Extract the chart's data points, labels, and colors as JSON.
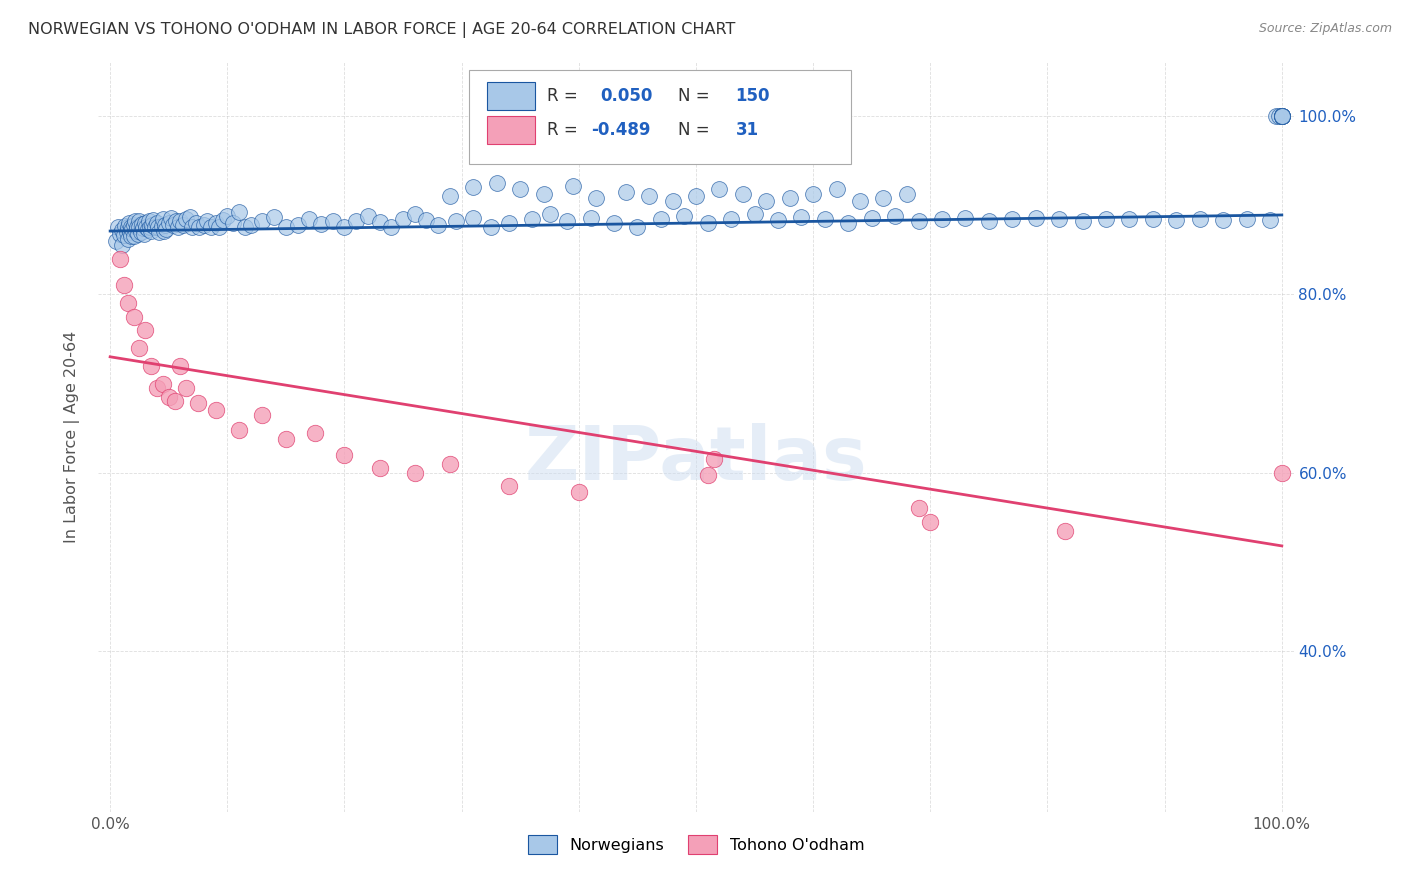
{
  "title": "NORWEGIAN VS TOHONO O'ODHAM IN LABOR FORCE | AGE 20-64 CORRELATION CHART",
  "source": "Source: ZipAtlas.com",
  "ylabel": "In Labor Force | Age 20-64",
  "watermark": "ZIPatlas",
  "legend_labels": [
    "Norwegians",
    "Tohono O'odham"
  ],
  "norwegian_R": "0.050",
  "norwegian_N": "150",
  "tohono_R": "-0.489",
  "tohono_N": "31",
  "norwegian_color": "#a8c8e8",
  "tohono_color": "#f4a0b8",
  "norwegian_line_color": "#1a56a0",
  "tohono_line_color": "#e04070",
  "bg_color": "#ffffff",
  "grid_color": "#c8c8c8",
  "right_ytick_color": "#2060c0",
  "ylim": [
    0.22,
    1.06
  ],
  "xlim": [
    -0.01,
    1.01
  ],
  "norwegian_x": [
    0.005,
    0.007,
    0.008,
    0.01,
    0.01,
    0.012,
    0.013,
    0.014,
    0.015,
    0.015,
    0.016,
    0.017,
    0.018,
    0.018,
    0.019,
    0.02,
    0.02,
    0.021,
    0.022,
    0.023,
    0.024,
    0.025,
    0.025,
    0.026,
    0.027,
    0.028,
    0.029,
    0.03,
    0.031,
    0.032,
    0.033,
    0.034,
    0.035,
    0.036,
    0.037,
    0.038,
    0.04,
    0.041,
    0.042,
    0.044,
    0.045,
    0.046,
    0.047,
    0.048,
    0.05,
    0.052,
    0.054,
    0.056,
    0.058,
    0.06,
    0.062,
    0.065,
    0.068,
    0.07,
    0.073,
    0.076,
    0.08,
    0.083,
    0.086,
    0.09,
    0.093,
    0.096,
    0.1,
    0.105,
    0.11,
    0.115,
    0.12,
    0.13,
    0.14,
    0.15,
    0.16,
    0.17,
    0.18,
    0.19,
    0.2,
    0.21,
    0.22,
    0.23,
    0.24,
    0.25,
    0.26,
    0.27,
    0.28,
    0.295,
    0.31,
    0.325,
    0.34,
    0.36,
    0.375,
    0.39,
    0.41,
    0.43,
    0.45,
    0.47,
    0.49,
    0.51,
    0.53,
    0.55,
    0.57,
    0.59,
    0.61,
    0.63,
    0.65,
    0.67,
    0.69,
    0.71,
    0.73,
    0.75,
    0.77,
    0.79,
    0.81,
    0.83,
    0.85,
    0.87,
    0.89,
    0.91,
    0.93,
    0.95,
    0.97,
    0.99,
    0.995,
    0.998,
    1.0,
    1.0,
    1.0,
    1.0,
    1.0,
    1.0,
    1.0,
    1.0,
    0.29,
    0.31,
    0.33,
    0.35,
    0.37,
    0.395,
    0.415,
    0.44,
    0.46,
    0.48,
    0.5,
    0.52,
    0.54,
    0.56,
    0.58,
    0.6,
    0.62,
    0.64,
    0.66,
    0.68
  ],
  "norwegian_y": [
    0.86,
    0.875,
    0.868,
    0.855,
    0.872,
    0.866,
    0.877,
    0.87,
    0.875,
    0.862,
    0.88,
    0.87,
    0.875,
    0.865,
    0.873,
    0.878,
    0.865,
    0.882,
    0.871,
    0.876,
    0.868,
    0.882,
    0.875,
    0.87,
    0.879,
    0.874,
    0.868,
    0.88,
    0.875,
    0.873,
    0.882,
    0.876,
    0.871,
    0.878,
    0.883,
    0.876,
    0.88,
    0.875,
    0.87,
    0.877,
    0.884,
    0.871,
    0.878,
    0.873,
    0.88,
    0.886,
    0.878,
    0.882,
    0.875,
    0.882,
    0.878,
    0.884,
    0.887,
    0.876,
    0.88,
    0.875,
    0.878,
    0.882,
    0.875,
    0.88,
    0.876,
    0.883,
    0.888,
    0.88,
    0.892,
    0.875,
    0.878,
    0.882,
    0.887,
    0.875,
    0.878,
    0.885,
    0.879,
    0.882,
    0.876,
    0.882,
    0.888,
    0.881,
    0.875,
    0.884,
    0.89,
    0.883,
    0.878,
    0.882,
    0.886,
    0.876,
    0.88,
    0.884,
    0.89,
    0.882,
    0.886,
    0.88,
    0.876,
    0.884,
    0.888,
    0.88,
    0.884,
    0.89,
    0.883,
    0.887,
    0.884,
    0.88,
    0.886,
    0.888,
    0.882,
    0.884,
    0.886,
    0.882,
    0.884,
    0.886,
    0.884,
    0.882,
    0.884,
    0.885,
    0.884,
    0.883,
    0.884,
    0.883,
    0.884,
    0.883,
    1.0,
    1.0,
    1.0,
    1.0,
    1.0,
    1.0,
    1.0,
    1.0,
    1.0,
    1.0,
    0.91,
    0.92,
    0.925,
    0.918,
    0.912,
    0.922,
    0.908,
    0.915,
    0.91,
    0.905,
    0.91,
    0.918,
    0.912,
    0.905,
    0.908,
    0.912,
    0.918,
    0.905,
    0.908,
    0.912
  ],
  "tohono_x": [
    0.008,
    0.012,
    0.015,
    0.02,
    0.025,
    0.03,
    0.035,
    0.04,
    0.045,
    0.05,
    0.055,
    0.06,
    0.065,
    0.075,
    0.09,
    0.11,
    0.13,
    0.15,
    0.175,
    0.2,
    0.23,
    0.26,
    0.29,
    0.34,
    0.4,
    0.51,
    0.515,
    0.69,
    0.7,
    0.815,
    1.0
  ],
  "tohono_y": [
    0.84,
    0.81,
    0.79,
    0.775,
    0.74,
    0.76,
    0.72,
    0.695,
    0.7,
    0.685,
    0.68,
    0.72,
    0.695,
    0.678,
    0.67,
    0.648,
    0.665,
    0.638,
    0.645,
    0.62,
    0.605,
    0.6,
    0.61,
    0.585,
    0.578,
    0.597,
    0.615,
    0.56,
    0.545,
    0.535,
    0.6
  ],
  "nor_trend_x": [
    0.0,
    1.0
  ],
  "nor_trend_y": [
    0.871,
    0.889
  ],
  "toh_trend_x": [
    0.0,
    1.0
  ],
  "toh_trend_y": [
    0.73,
    0.518
  ]
}
